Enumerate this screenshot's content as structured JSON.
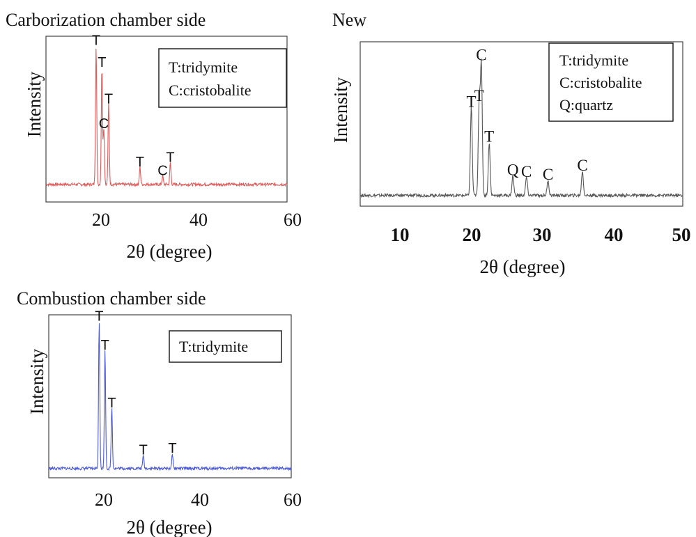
{
  "chart_data": [
    {
      "type": "line",
      "title": "Carborization chamber side",
      "xlabel": "2θ (degree)",
      "ylabel": "Intensity",
      "xlim": [
        10,
        60
      ],
      "x_ticks": [
        "20",
        "40",
        "60"
      ],
      "color": "#e05a5a",
      "legend": [
        "T:tridymite",
        "C:cristobalite"
      ],
      "peaks": [
        {
          "x": 20.4,
          "y": 0.95,
          "label": "T"
        },
        {
          "x": 21.6,
          "y": 0.8,
          "label": "T"
        },
        {
          "x": 23.0,
          "y": 0.55,
          "label": "T"
        },
        {
          "x": 22.0,
          "y": 0.38,
          "label": "C"
        },
        {
          "x": 29.5,
          "y": 0.12,
          "label": "T"
        },
        {
          "x": 35.8,
          "y": 0.15,
          "label": "T"
        },
        {
          "x": 34.2,
          "y": 0.06,
          "label": "C"
        }
      ]
    },
    {
      "type": "line",
      "title": "New",
      "xlabel": "2θ (degree)",
      "ylabel": "Intensity",
      "xlim": [
        5,
        50
      ],
      "x_ticks": [
        "10",
        "20",
        "30",
        "40",
        "50"
      ],
      "color": "#555555",
      "legend": [
        "T:tridymite",
        "C:cristobalite",
        "Q:quartz"
      ],
      "peaks": [
        {
          "x": 20.5,
          "y": 0.58,
          "label": "T"
        },
        {
          "x": 21.6,
          "y": 0.62,
          "label": "T"
        },
        {
          "x": 21.9,
          "y": 0.86,
          "label": "C"
        },
        {
          "x": 23.0,
          "y": 0.35,
          "label": "T"
        },
        {
          "x": 26.3,
          "y": 0.13,
          "label": "Q"
        },
        {
          "x": 28.2,
          "y": 0.12,
          "label": "C"
        },
        {
          "x": 31.2,
          "y": 0.1,
          "label": "C"
        },
        {
          "x": 36.0,
          "y": 0.16,
          "label": "C"
        }
      ]
    },
    {
      "type": "line",
      "title": "Combustion chamber side",
      "xlabel": "2θ (degree)",
      "ylabel": "Intensity",
      "xlim": [
        10,
        60
      ],
      "x_ticks": [
        "20",
        "40",
        "60"
      ],
      "color": "#4e5bd6",
      "legend": [
        "T:tridymite"
      ],
      "peaks": [
        {
          "x": 20.4,
          "y": 0.97,
          "label": "T"
        },
        {
          "x": 21.6,
          "y": 0.78,
          "label": "T"
        },
        {
          "x": 23.0,
          "y": 0.4,
          "label": "T"
        },
        {
          "x": 29.5,
          "y": 0.09,
          "label": "T"
        },
        {
          "x": 35.5,
          "y": 0.1,
          "label": "T"
        }
      ]
    }
  ]
}
